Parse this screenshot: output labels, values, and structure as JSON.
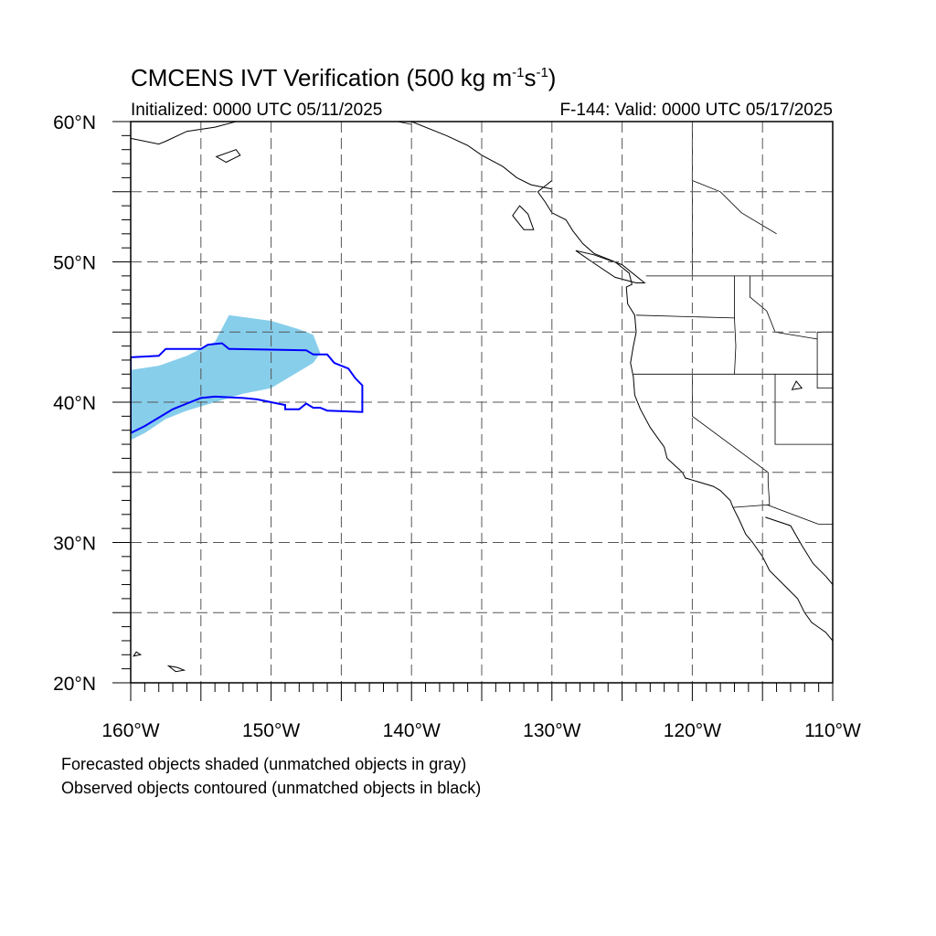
{
  "title": {
    "text": "CMCENS IVT Verification (500 kg m",
    "sup1": "-1",
    "mid": "s",
    "sup2": "-1",
    "end": ")"
  },
  "init_label": "Initialized: 0000 UTC 05/11/2025",
  "forecast_label": "F-144: Valid: 0000 UTC 05/17/2025",
  "notes": [
    "Forecasted objects shaded (unmatched objects in gray)",
    "Observed objects contoured (unmatched objects in black)"
  ],
  "map": {
    "lon_range": [
      -160,
      -110
    ],
    "lat_range": [
      20,
      60
    ],
    "lat_ticks": [
      {
        "lat": 60,
        "label": "60°N"
      },
      {
        "lat": 50,
        "label": "50°N"
      },
      {
        "lat": 40,
        "label": "40°N"
      },
      {
        "lat": 30,
        "label": "30°N"
      },
      {
        "lat": 20,
        "label": "20°N"
      }
    ],
    "lon_ticks": [
      {
        "lon": -160,
        "label": "160°W"
      },
      {
        "lon": -150,
        "label": "150°W"
      },
      {
        "lon": -140,
        "label": "140°W"
      },
      {
        "lon": -130,
        "label": "130°W"
      },
      {
        "lon": -120,
        "label": "120°W"
      },
      {
        "lon": -110,
        "label": "110°W"
      }
    ],
    "gridline_style": "dashed",
    "colors": {
      "forecast_fill": "#87ceeb",
      "observed_contour": "#0000ff",
      "coastline": "#000000",
      "grid": "#555555"
    },
    "forecast_object": [
      [
        -160,
        42.3
      ],
      [
        -158,
        42.6
      ],
      [
        -156,
        43.3
      ],
      [
        -154,
        44.3
      ],
      [
        -153,
        46.2
      ],
      [
        -150,
        45.8
      ],
      [
        -148,
        45.2
      ],
      [
        -147,
        44.8
      ],
      [
        -146.5,
        43.5
      ],
      [
        -147,
        42.8
      ],
      [
        -148,
        42.2
      ],
      [
        -149,
        41.6
      ],
      [
        -150,
        41.0
      ],
      [
        -152,
        40.6
      ],
      [
        -154,
        40.0
      ],
      [
        -156,
        39.4
      ],
      [
        -157.5,
        38.8
      ],
      [
        -159,
        37.8
      ],
      [
        -160,
        37.3
      ]
    ],
    "observed_object": [
      [
        -160,
        43.2
      ],
      [
        -158,
        43.3
      ],
      [
        -157.5,
        43.8
      ],
      [
        -155,
        43.8
      ],
      [
        -154.5,
        44.1
      ],
      [
        -153.5,
        44.2
      ],
      [
        -153,
        43.8
      ],
      [
        -147.5,
        43.7
      ],
      [
        -147,
        43.4
      ],
      [
        -146,
        43.4
      ],
      [
        -145.5,
        42.8
      ],
      [
        -144.5,
        42.4
      ],
      [
        -144,
        41.7
      ],
      [
        -143.5,
        41.2
      ],
      [
        -143.5,
        39.3
      ],
      [
        -146,
        39.4
      ],
      [
        -146.5,
        39.6
      ],
      [
        -147,
        39.6
      ],
      [
        -147.5,
        39.9
      ],
      [
        -148,
        39.5
      ],
      [
        -149,
        39.5
      ],
      [
        -149,
        39.8
      ],
      [
        -150,
        40.0
      ],
      [
        -151,
        40.2
      ],
      [
        -152,
        40.3
      ],
      [
        -154,
        40.4
      ],
      [
        -155,
        40.3
      ],
      [
        -156,
        39.9
      ],
      [
        -157,
        39.5
      ],
      [
        -158,
        38.9
      ],
      [
        -159,
        38.3
      ],
      [
        -160,
        37.8
      ]
    ],
    "us_coast": [
      [
        -130,
        55.8
      ],
      [
        -131,
        55.0
      ],
      [
        -130.5,
        54.3
      ],
      [
        -130,
        53.5
      ],
      [
        -129,
        53.0
      ],
      [
        -128.5,
        52.2
      ],
      [
        -127.8,
        51.3
      ],
      [
        -127,
        50.6
      ],
      [
        -125.5,
        50.0
      ],
      [
        -124.5,
        49.2
      ],
      [
        -124.3,
        48.4
      ],
      [
        -124.7,
        48.2
      ],
      [
        -124.6,
        47.0
      ],
      [
        -124.1,
        46.2
      ],
      [
        -124,
        45.0
      ],
      [
        -124.2,
        44.0
      ],
      [
        -124.4,
        42.8
      ],
      [
        -124.2,
        41.8
      ],
      [
        -124.1,
        40.5
      ],
      [
        -123.7,
        39.5
      ],
      [
        -123,
        38.2
      ],
      [
        -122.5,
        37.5
      ],
      [
        -122,
        36.8
      ],
      [
        -121.8,
        36.0
      ],
      [
        -120.7,
        35.0
      ],
      [
        -120.5,
        34.6
      ],
      [
        -119.5,
        34.3
      ],
      [
        -118.5,
        34.0
      ],
      [
        -118,
        33.7
      ],
      [
        -117.3,
        33.0
      ],
      [
        -117.1,
        32.5
      ],
      [
        -116.7,
        31.7
      ],
      [
        -116.2,
        30.6
      ],
      [
        -115.7,
        30.0
      ],
      [
        -115,
        29.0
      ],
      [
        -114.5,
        28.0
      ],
      [
        -113.5,
        27.0
      ],
      [
        -112.5,
        26.0
      ],
      [
        -112,
        25.0
      ],
      [
        -111.5,
        24.3
      ],
      [
        -110.5,
        23.6
      ],
      [
        -110,
        23.0
      ]
    ],
    "mainland_gulf_coast": [
      [
        -114.8,
        31.8
      ],
      [
        -113,
        31.2
      ],
      [
        -112.2,
        29.8
      ],
      [
        -111.4,
        28.5
      ],
      [
        -110.5,
        27.6
      ],
      [
        -110,
        27.0
      ]
    ],
    "alaska_coast": [
      [
        -160,
        58.8
      ],
      [
        -158,
        58.4
      ],
      [
        -157.5,
        58.6
      ],
      [
        -156,
        59.3
      ],
      [
        -154,
        59.6
      ],
      [
        -152.5,
        60.0
      ]
    ],
    "alaska_panhandle": [
      [
        -140,
        60.0
      ],
      [
        -137.5,
        59.0
      ],
      [
        -136,
        58.3
      ],
      [
        -135,
        57.6
      ],
      [
        -133.5,
        56.8
      ],
      [
        -132.5,
        56.0
      ],
      [
        -131.5,
        55.5
      ],
      [
        -130,
        55.2
      ]
    ],
    "islands": [
      [
        [
          -153.9,
          57.5
        ],
        [
          -152.5,
          58.0
        ],
        [
          -152.2,
          57.6
        ],
        [
          -153.2,
          57.1
        ],
        [
          -153.9,
          57.5
        ]
      ],
      [
        [
          -132.3,
          54.0
        ],
        [
          -131.7,
          53.4
        ],
        [
          -131.3,
          52.3
        ],
        [
          -132.0,
          52.3
        ],
        [
          -132.8,
          53.3
        ],
        [
          -132.3,
          54.0
        ]
      ],
      [
        [
          -128.3,
          50.8
        ],
        [
          -127,
          50.5
        ],
        [
          -125,
          49.8
        ],
        [
          -123.4,
          48.5
        ],
        [
          -124,
          48.5
        ],
        [
          -125.5,
          48.9
        ],
        [
          -127,
          49.9
        ],
        [
          -128.3,
          50.8
        ]
      ],
      [
        [
          -155.8,
          20.0
        ],
        [
          -155.0,
          19.7
        ],
        [
          -155.5,
          19.0
        ],
        [
          -156,
          19.5
        ],
        [
          -155.8,
          20.0
        ]
      ],
      [
        [
          -157.3,
          21.2
        ],
        [
          -156.8,
          20.8
        ],
        [
          -156.2,
          20.9
        ],
        [
          -156.7,
          21.1
        ],
        [
          -157.3,
          21.2
        ]
      ],
      [
        [
          -159.6,
          22.2
        ],
        [
          -159.3,
          22.0
        ],
        [
          -159.8,
          21.9
        ],
        [
          -159.6,
          22.2
        ]
      ],
      [
        [
          -112.6,
          41.5
        ],
        [
          -112.2,
          41.0
        ],
        [
          -112.9,
          40.9
        ],
        [
          -112.6,
          41.5
        ]
      ]
    ],
    "borders": [
      [
        [
          -123.3,
          49.0
        ],
        [
          -110,
          49.0
        ]
      ],
      [
        [
          -124.2,
          42.0
        ],
        [
          -110,
          42.0
        ]
      ],
      [
        [
          -120,
          42.0
        ],
        [
          -120,
          39.0
        ],
        [
          -114.6,
          35.0
        ],
        [
          -114.6,
          34.3
        ],
        [
          -114.5,
          32.7
        ],
        [
          -117.1,
          32.5
        ]
      ],
      [
        [
          -114.7,
          32.7
        ],
        [
          -111,
          31.3
        ],
        [
          -110,
          31.3
        ]
      ],
      [
        [
          -117.0,
          49.0
        ],
        [
          -117.0,
          46.0
        ],
        [
          -116.9,
          44.0
        ],
        [
          -117.0,
          42.0
        ]
      ],
      [
        [
          -117.0,
          46.0
        ],
        [
          -124.0,
          46.2
        ]
      ],
      [
        [
          -115.9,
          49.0
        ],
        [
          -115.9,
          47.5
        ],
        [
          -114.7,
          46.5
        ],
        [
          -114.1,
          45.0
        ],
        [
          -111.1,
          44.5
        ]
      ],
      [
        [
          -111.1,
          45.0
        ],
        [
          -110,
          45.0
        ]
      ],
      [
        [
          -114.1,
          42.0
        ],
        [
          -114.1,
          37.0
        ],
        [
          -110,
          37.0
        ]
      ],
      [
        [
          -111.1,
          45.0
        ],
        [
          -111.1,
          41.0
        ],
        [
          -110,
          41.0
        ]
      ],
      [
        [
          -120,
          60.0
        ],
        [
          -120,
          49.0
        ]
      ],
      [
        [
          -120,
          55.8
        ],
        [
          -118,
          55.0
        ],
        [
          -116.5,
          53.5
        ],
        [
          -114,
          52.0
        ]
      ],
      [
        [
          -141.0,
          60.0
        ],
        [
          -140,
          59.8
        ]
      ]
    ]
  }
}
